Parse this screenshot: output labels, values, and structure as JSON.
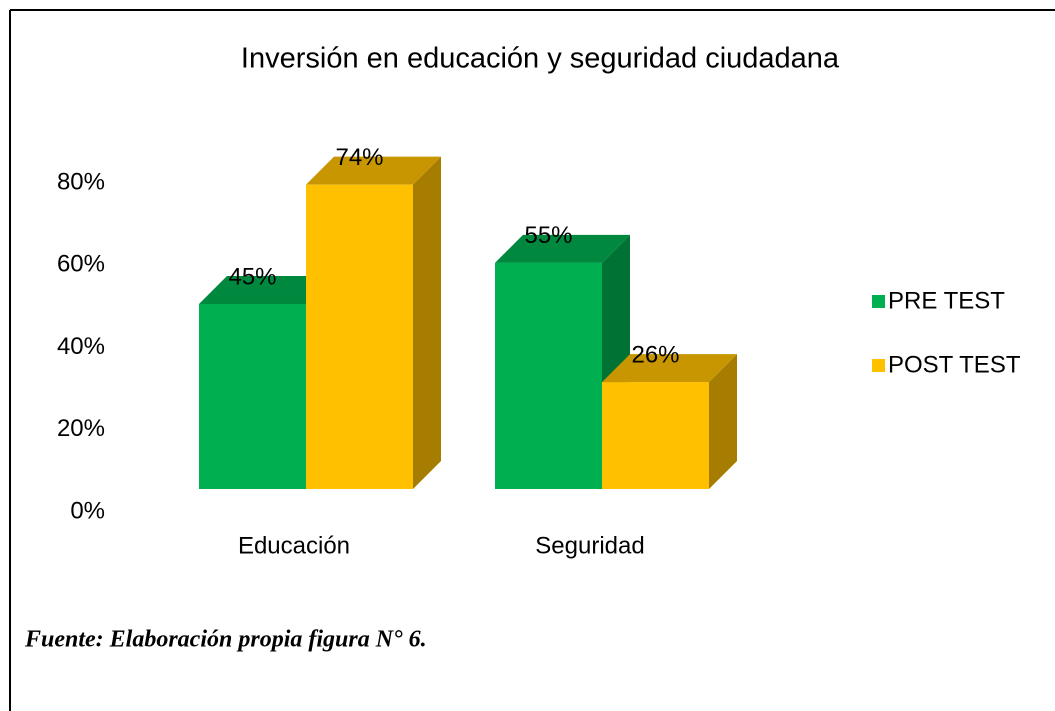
{
  "chart_data": {
    "type": "bar3d",
    "title": "Inversión en educación y seguridad ciudadana",
    "categories": [
      "Educación",
      "Seguridad"
    ],
    "series": [
      {
        "name": "PRE TEST",
        "color": "#00b050",
        "values": [
          45,
          55
        ],
        "value_labels": [
          "45%",
          "55%"
        ]
      },
      {
        "name": "POST TEST",
        "color": "#ffc000",
        "values": [
          74,
          26
        ],
        "value_labels": [
          "74%",
          "26%"
        ]
      }
    ],
    "ylim": [
      0,
      80
    ],
    "yticks": [
      {
        "value": 0,
        "label": "0%"
      },
      {
        "value": 20,
        "label": "20%"
      },
      {
        "value": 40,
        "label": "40%"
      },
      {
        "value": 60,
        "label": "60%"
      },
      {
        "value": 80,
        "label": "80%"
      }
    ],
    "legend": "right",
    "note": "Fuente: Elaboración propia figura N° 6."
  }
}
